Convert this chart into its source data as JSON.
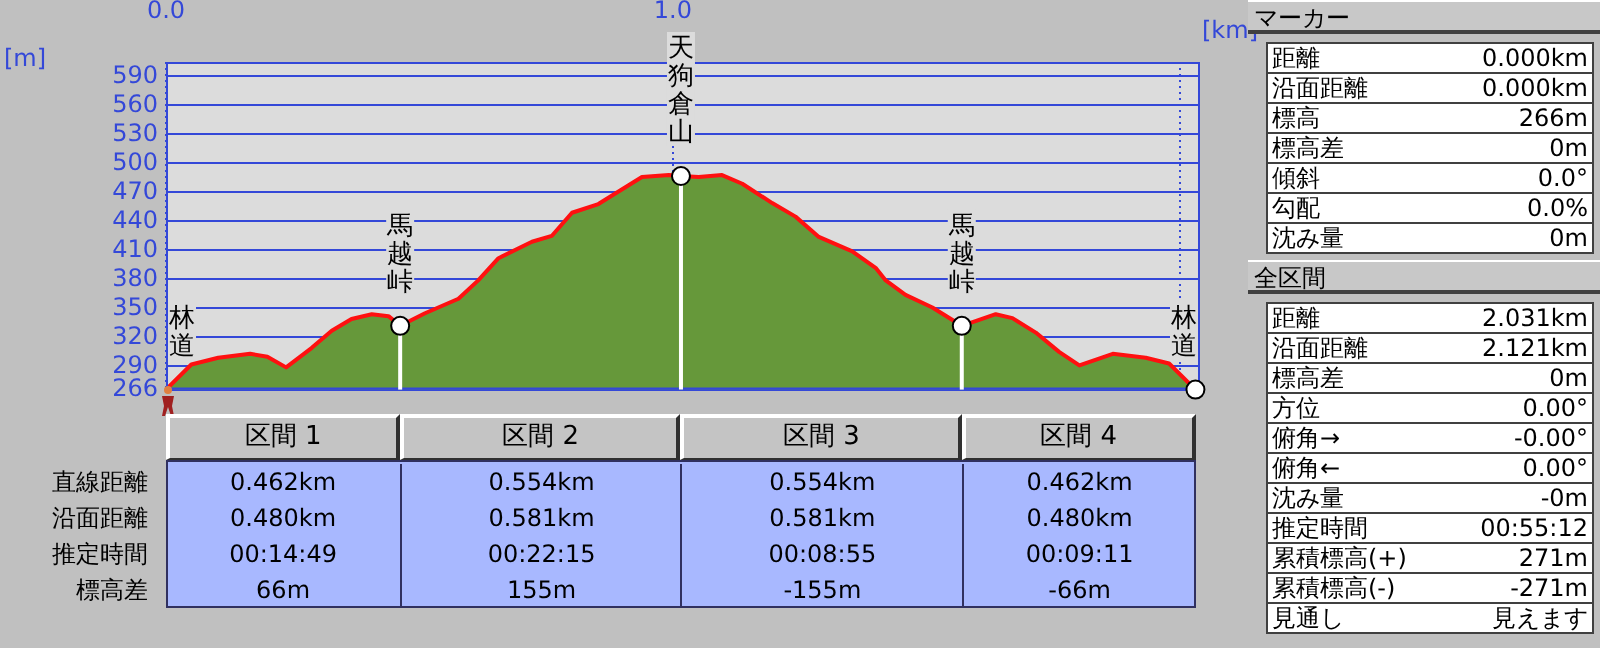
{
  "chart_data": {
    "type": "area",
    "xlabel": "[km]",
    "ylabel": "[m]",
    "x": [
      0,
      0.05,
      0.103,
      0.166,
      0.2,
      0.237,
      0.287,
      0.327,
      0.366,
      0.406,
      0.439,
      0.462,
      0.511,
      0.577,
      0.616,
      0.656,
      0.722,
      0.761,
      0.801,
      0.853,
      0.939,
      0.992,
      1.016,
      1.051,
      1.097,
      1.137,
      1.196,
      1.242,
      1.288,
      1.354,
      1.4,
      1.42,
      1.459,
      1.512,
      1.57,
      1.637,
      1.67,
      1.716,
      1.762,
      1.802,
      1.868,
      1.933,
      1.979,
      2.031
    ],
    "series": [
      {
        "color": "#66983a",
        "values": [
          266,
          292,
          299,
          303,
          300,
          289,
          309,
          327,
          339,
          344,
          342,
          332,
          345,
          360,
          379,
          402,
          419,
          425,
          449,
          458,
          486,
          488,
          487,
          486,
          488,
          479,
          459,
          445,
          424,
          409,
          392,
          379,
          364,
          351,
          332,
          344,
          340,
          325,
          305,
          291,
          303,
          299,
          293,
          266
        ]
      }
    ],
    "xlim": [
      0,
      2.04
    ],
    "xticks": [
      {
        "value": 0,
        "label": "0.0"
      },
      {
        "value": 1,
        "label": "1.0"
      },
      {
        "value": 2,
        "label": null
      }
    ],
    "ylim": [
      266,
      605
    ],
    "yticks": [
      266,
      290,
      320,
      350,
      380,
      410,
      440,
      470,
      500,
      530,
      560,
      590
    ],
    "grid": true,
    "annotations": [
      {
        "text": "林道",
        "x": 0,
        "y": 266
      },
      {
        "text": "馬越峠",
        "x": 0.462,
        "y": 332
      },
      {
        "text": "天狗倉山",
        "x": 1.016,
        "y": 487
      },
      {
        "text": "馬越峠",
        "x": 1.57,
        "y": 332
      },
      {
        "text": "林道",
        "x": 2.031,
        "y": 266
      },
      "区間 1",
      "区間 2",
      "区間 3",
      "区間 4",
      "直線距離",
      "0.462km",
      "0.554km",
      "0.554km",
      "0.462km",
      "沿面距離",
      "0.480km",
      "0.581km",
      "0.581km",
      "0.480km",
      "推定時間",
      "00:14:49",
      "00:22:15",
      "00:08:55",
      "00:09:11",
      "標高差",
      "66m",
      "155m",
      "-155m",
      "-66m",
      "マーカー",
      "距離",
      "0.000km",
      "沿面距離",
      "0.000km",
      "標高",
      "266m",
      "標高差",
      "0m",
      "傾斜",
      "0.0°",
      "勾配",
      "0.0%",
      "沈み量",
      "0m",
      "全区間",
      "距離",
      "2.031km",
      "沿面距離",
      "2.121km",
      "標高差",
      "0m",
      "方位",
      "0.00°",
      "俯角→",
      "-0.00°",
      "俯角←",
      "0.00°",
      "沈み量",
      "-0m",
      "推定時間",
      "00:55:12",
      "累積標高(+)",
      "271m",
      "累積標高(-)",
      "-271m",
      "見通し",
      "見えます"
    ]
  }
}
